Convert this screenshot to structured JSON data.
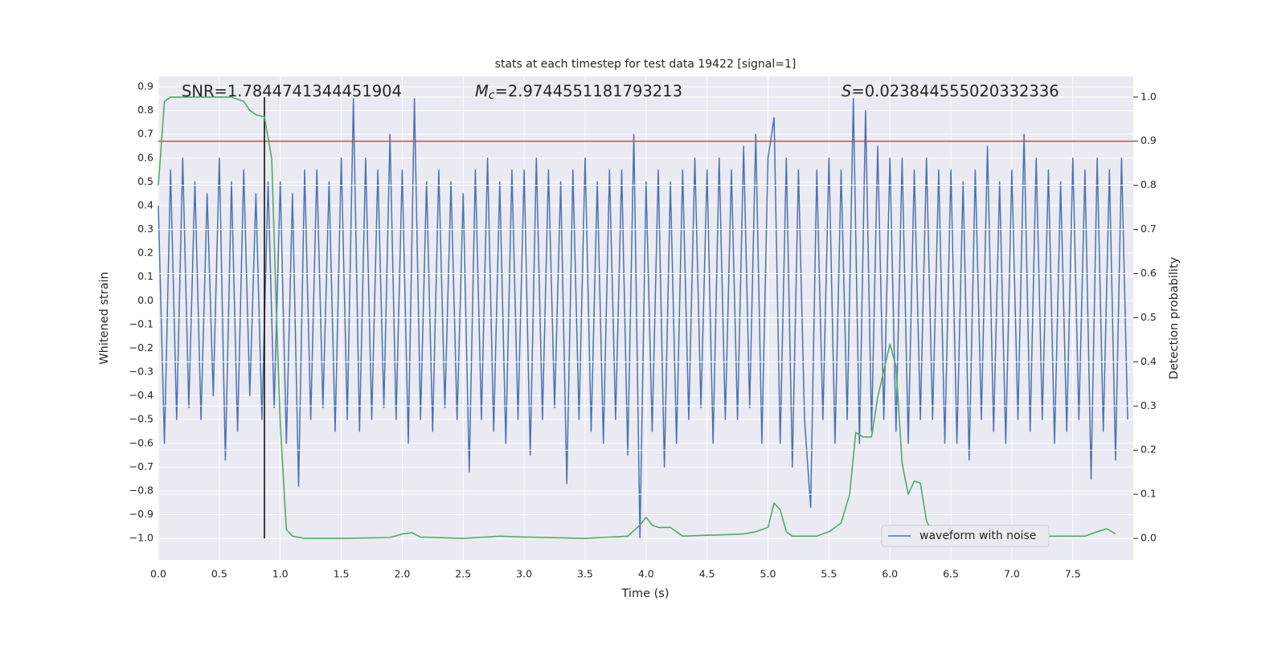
{
  "chart_data": {
    "type": "line",
    "title": "stats at each timestep for test data 19422 [signal=1]",
    "xlabel": "Time (s)",
    "ylabel": "Whitened strain",
    "y2label": "Detection probability",
    "xlim": [
      0,
      7.996
    ],
    "ylim": [
      -1.091,
      0.944
    ],
    "y2lim": [
      -0.049,
      1.047
    ],
    "xticks": [
      {
        "value": 0,
        "label": "0.0"
      },
      0.5,
      {
        "value": 1,
        "label": "1.0"
      },
      1.5,
      {
        "value": 2,
        "label": "2.0"
      },
      2.5,
      {
        "value": 3,
        "label": "3.0"
      },
      3.5,
      {
        "value": 4,
        "label": "4.0"
      },
      4.5,
      {
        "value": 5,
        "label": "5.0"
      },
      5.5,
      {
        "value": 6,
        "label": "6.0"
      },
      6.5,
      {
        "value": 7,
        "label": "7.0"
      },
      7.5
    ],
    "yticks": [
      {
        "value": -1,
        "label": "−1.0"
      },
      {
        "value": -0.9,
        "label": "−0.9"
      },
      {
        "value": -0.8,
        "label": "−0.8"
      },
      {
        "value": -0.7,
        "label": "−0.7"
      },
      {
        "value": -0.6,
        "label": "−0.6"
      },
      {
        "value": -0.5,
        "label": "−0.5"
      },
      {
        "value": -0.4,
        "label": "−0.4"
      },
      {
        "value": -0.3,
        "label": "−0.3"
      },
      {
        "value": -0.2,
        "label": "−0.2"
      },
      {
        "value": -0.1,
        "label": "−0.1"
      },
      {
        "value": 0,
        "label": "0.0"
      },
      0.1,
      0.2,
      0.3,
      0.4,
      0.5,
      0.6,
      0.7,
      0.8,
      0.9
    ],
    "y2ticks": [
      {
        "value": 0,
        "label": "0.0"
      },
      0.1,
      0.2,
      0.3,
      0.4,
      0.5,
      0.6,
      0.7,
      0.8,
      0.9,
      {
        "value": 1,
        "label": "1.0"
      }
    ],
    "grid": true,
    "legend": "lower right",
    "series": [
      {
        "name": "waveform with noise",
        "color": "#4c72b0",
        "x": [
          0,
          0.05,
          0.1,
          0.15,
          0.2,
          0.25,
          0.3,
          0.35,
          0.4,
          0.45,
          0.5,
          0.55,
          0.6,
          0.65,
          0.7,
          0.75,
          0.8,
          0.85,
          0.9,
          0.95,
          1,
          1.05,
          1.1,
          1.15,
          1.2,
          1.25,
          1.3,
          1.35,
          1.4,
          1.45,
          1.5,
          1.55,
          1.6,
          1.65,
          1.7,
          1.75,
          1.8,
          1.85,
          1.9,
          1.95,
          2,
          2.05,
          2.1,
          2.15,
          2.2,
          2.25,
          2.3,
          2.35,
          2.4,
          2.45,
          2.5,
          2.55,
          2.6,
          2.65,
          2.7,
          2.75,
          2.8,
          2.85,
          2.9,
          2.95,
          3,
          3.05,
          3.1,
          3.15,
          3.2,
          3.25,
          3.3,
          3.35,
          3.4,
          3.45,
          3.5,
          3.55,
          3.6,
          3.65,
          3.7,
          3.75,
          3.8,
          3.85,
          3.9,
          3.95,
          4,
          4.05,
          4.1,
          4.15,
          4.2,
          4.25,
          4.3,
          4.35,
          4.4,
          4.45,
          4.5,
          4.55,
          4.6,
          4.65,
          4.7,
          4.75,
          4.8,
          4.85,
          4.9,
          4.95,
          5,
          5.05,
          5.1,
          5.15,
          5.2,
          5.25,
          5.3,
          5.35,
          5.4,
          5.45,
          5.5,
          5.55,
          5.6,
          5.65,
          5.7,
          5.75,
          5.8,
          5.85,
          5.9,
          5.95,
          6,
          6.05,
          6.1,
          6.15,
          6.2,
          6.25,
          6.3,
          6.35,
          6.4,
          6.45,
          6.5,
          6.55,
          6.6,
          6.65,
          6.7,
          6.75,
          6.8,
          6.85,
          6.9,
          6.95,
          7,
          7.05,
          7.1,
          7.15,
          7.2,
          7.25,
          7.3,
          7.35,
          7.4,
          7.45,
          7.5,
          7.55,
          7.6,
          7.65,
          7.7,
          7.75,
          7.8,
          7.85,
          7.9,
          7.95
        ],
        "values": [
          0.4,
          -0.6,
          0.55,
          -0.5,
          0.6,
          -0.45,
          0.5,
          -0.5,
          0.45,
          -0.4,
          0.6,
          -0.67,
          0.5,
          -0.55,
          0.55,
          -0.4,
          0.45,
          -0.5,
          0.5,
          -0.45,
          0.5,
          -0.6,
          0.45,
          -0.78,
          0.55,
          -0.5,
          0.55,
          -0.45,
          0.5,
          -0.55,
          0.6,
          -0.5,
          0.85,
          -0.55,
          0.6,
          -0.5,
          0.55,
          -0.45,
          0.7,
          -0.5,
          0.55,
          -0.6,
          0.85,
          -0.5,
          0.5,
          -0.55,
          0.55,
          -0.45,
          0.5,
          -0.5,
          0.45,
          -0.72,
          0.55,
          -0.5,
          0.6,
          -0.55,
          0.5,
          -0.6,
          0.55,
          -0.5,
          0.55,
          -0.65,
          0.6,
          -0.5,
          0.55,
          -0.45,
          0.5,
          -0.77,
          0.55,
          -0.5,
          0.6,
          -0.55,
          0.5,
          -0.6,
          0.55,
          -0.5,
          0.55,
          -0.65,
          0.7,
          -1.0,
          0.5,
          -0.55,
          0.55,
          -0.7,
          0.5,
          -0.6,
          0.55,
          -0.5,
          0.6,
          -0.45,
          0.55,
          -0.6,
          0.6,
          -0.5,
          0.55,
          -0.5,
          0.65,
          -0.45,
          0.7,
          -0.6,
          0.6,
          0.77,
          -0.6,
          0.6,
          -0.7,
          0.55,
          -0.5,
          -0.87,
          0.55,
          -0.5,
          0.6,
          -0.6,
          0.55,
          -0.5,
          0.85,
          -0.6,
          0.8,
          -0.55,
          0.65,
          -0.5,
          0.6,
          -0.55,
          0.6,
          -0.6,
          0.55,
          -0.5,
          0.6,
          -0.5,
          0.55,
          -0.6,
          0.55,
          -0.6,
          0.5,
          -0.67,
          0.55,
          -0.5,
          0.65,
          -0.55,
          0.5,
          -0.6,
          0.55,
          -0.5,
          0.7,
          -0.55,
          0.6,
          -0.5,
          0.55,
          -0.6,
          0.5,
          -0.55,
          0.6,
          -0.5,
          0.55,
          -0.75,
          0.6,
          -0.55,
          0.55,
          -0.67,
          0.6,
          -0.5
        ]
      },
      {
        "color": "#55a868",
        "axis": "y2",
        "x": [
          0,
          0.05,
          0.1,
          0.2,
          0.3,
          0.4,
          0.5,
          0.6,
          0.7,
          0.75,
          0.8,
          0.87,
          0.93,
          0.97,
          1.0,
          1.05,
          1.1,
          1.2,
          1.5,
          1.9,
          2.0,
          2.08,
          2.15,
          2.5,
          2.8,
          3.0,
          3.5,
          3.85,
          3.95,
          4.0,
          4.05,
          4.1,
          4.2,
          4.3,
          4.8,
          4.9,
          5.0,
          5.05,
          5.1,
          5.15,
          5.2,
          5.4,
          5.5,
          5.6,
          5.67,
          5.72,
          5.78,
          5.85,
          5.9,
          6.0,
          6.05,
          6.1,
          6.15,
          6.2,
          6.25,
          6.3,
          6.35,
          6.4,
          7.6,
          7.7,
          7.78,
          7.85
        ],
        "values": [
          0.8,
          0.99,
          1,
          1,
          1,
          1,
          1,
          1,
          0.99,
          0.97,
          0.96,
          0.955,
          0.86,
          0.5,
          0.26,
          0.02,
          0.005,
          0,
          0,
          0.002,
          0.01,
          0.013,
          0.003,
          0,
          0.005,
          0.003,
          0,
          0.005,
          0.03,
          0.048,
          0.03,
          0.025,
          0.025,
          0.005,
          0.01,
          0.015,
          0.025,
          0.08,
          0.065,
          0.015,
          0.005,
          0.005,
          0.015,
          0.035,
          0.1,
          0.24,
          0.23,
          0.23,
          0.32,
          0.44,
          0.39,
          0.17,
          0.1,
          0.13,
          0.125,
          0.04,
          0.01,
          0.005,
          0.005,
          0.015,
          0.022,
          0.01
        ]
      }
    ],
    "hlines": [
      {
        "y2": 0.9,
        "color": "#c44e52"
      }
    ],
    "vlines": [
      {
        "x": 0.87,
        "y2min": 0,
        "y2max": 1,
        "color": "#000000"
      }
    ],
    "annotations": [
      {
        "text": "SNR=1.7844741344451904"
      },
      {
        "symbol": "M",
        "subscript": "c",
        "text": "=2.9744551181793213"
      },
      {
        "symbol": "S",
        "text": "=0.023844555020332336"
      }
    ]
  }
}
